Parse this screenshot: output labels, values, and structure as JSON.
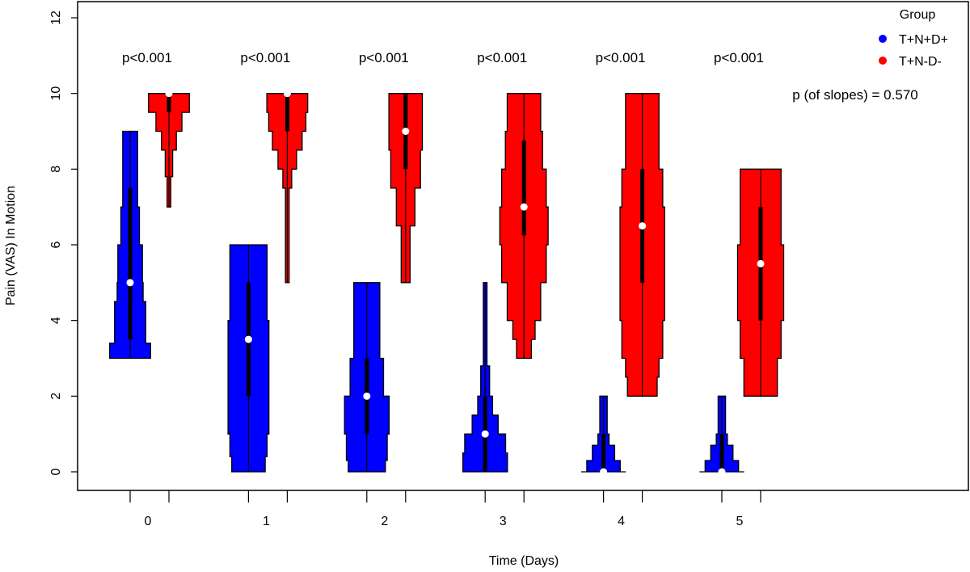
{
  "chart_data": {
    "type": "violin",
    "xlabel": "Time (Days)",
    "ylabel": "Pain (VAS) In Motion",
    "ylim": [
      0,
      12
    ],
    "yticks": [
      0,
      2,
      4,
      6,
      8,
      10,
      12
    ],
    "categories": [
      "0",
      "1",
      "2",
      "3",
      "4",
      "5"
    ],
    "legend": {
      "title": "Group",
      "position": "top-right"
    },
    "slope_annotation": "p (of slopes) = 0.570",
    "p_values": [
      "p<0.001",
      "p<0.001",
      "p<0.001",
      "p<0.001",
      "p<0.001",
      "p<0.001"
    ],
    "series": [
      {
        "name": "T+N+D+",
        "color": "#0000ff",
        "groups": [
          {
            "day": "0",
            "median": 5,
            "min": 3,
            "max": 9,
            "q1": 3.5,
            "q3": 7.5,
            "profile": [
              [
                3,
                0.55
              ],
              [
                3.4,
                0.55
              ],
              [
                3.5,
                0.42
              ],
              [
                4.5,
                0.42
              ],
              [
                5,
                0.35
              ],
              [
                6,
                0.33
              ],
              [
                7,
                0.25
              ],
              [
                8,
                0.2
              ],
              [
                9,
                0.2
              ]
            ]
          },
          {
            "day": "1",
            "median": 3.5,
            "min": 0,
            "max": 6,
            "q1": 2,
            "q3": 5,
            "profile": [
              [
                0,
                0.35
              ],
              [
                0.4,
                0.45
              ],
              [
                1,
                0.5
              ],
              [
                2,
                0.55
              ],
              [
                3,
                0.55
              ],
              [
                4,
                0.55
              ],
              [
                5,
                0.5
              ],
              [
                6,
                0.5
              ]
            ]
          },
          {
            "day": "2",
            "median": 2,
            "min": 0,
            "max": 5,
            "q1": 1,
            "q3": 3,
            "profile": [
              [
                0,
                0.45
              ],
              [
                0.3,
                0.5
              ],
              [
                1,
                0.55
              ],
              [
                2,
                0.6
              ],
              [
                3,
                0.45
              ],
              [
                4,
                0.35
              ],
              [
                5,
                0.35
              ]
            ]
          },
          {
            "day": "3",
            "median": 1,
            "min": 0,
            "max": 5,
            "q1": 0,
            "q3": 2,
            "profile": [
              [
                0,
                0.6
              ],
              [
                0.5,
                0.6
              ],
              [
                1,
                0.55
              ],
              [
                1.5,
                0.35
              ],
              [
                2,
                0.2
              ],
              [
                2.8,
                0.12
              ],
              [
                3.2,
                0.05
              ],
              [
                5,
                0.05
              ]
            ]
          },
          {
            "day": "4",
            "median": 0,
            "min": 0,
            "max": 2,
            "q1": 0,
            "q3": 1,
            "profile": [
              [
                0,
                0.6
              ],
              [
                0.3,
                0.45
              ],
              [
                0.7,
                0.3
              ],
              [
                1,
                0.15
              ],
              [
                1.5,
                0.1
              ],
              [
                2,
                0.1
              ]
            ]
          },
          {
            "day": "5",
            "median": 0,
            "min": 0,
            "max": 2,
            "q1": 0,
            "q3": 1,
            "profile": [
              [
                0,
                0.6
              ],
              [
                0.3,
                0.45
              ],
              [
                0.7,
                0.3
              ],
              [
                1,
                0.15
              ],
              [
                1.5,
                0.1
              ],
              [
                2,
                0.1
              ]
            ]
          }
        ]
      },
      {
        "name": "T+N-D-",
        "color": "#ff0000",
        "groups": [
          {
            "day": "0",
            "median": 10,
            "min": 7,
            "max": 10,
            "q1": 9.5,
            "q3": 10,
            "profile": [
              [
                7,
                0.05
              ],
              [
                7.8,
                0.05
              ],
              [
                8.5,
                0.1
              ],
              [
                9,
                0.2
              ],
              [
                9.5,
                0.35
              ],
              [
                10,
                0.55
              ]
            ]
          },
          {
            "day": "1",
            "median": 10,
            "min": 5,
            "max": 10,
            "q1": 9,
            "q3": 10,
            "profile": [
              [
                5,
                0.05
              ],
              [
                7.5,
                0.05
              ],
              [
                8,
                0.12
              ],
              [
                8.5,
                0.25
              ],
              [
                9,
                0.4
              ],
              [
                9.5,
                0.5
              ],
              [
                10,
                0.55
              ]
            ]
          },
          {
            "day": "2",
            "median": 9,
            "min": 5,
            "max": 10,
            "q1": 8,
            "q3": 10,
            "profile": [
              [
                5,
                0.12
              ],
              [
                5.8,
                0.12
              ],
              [
                6.5,
                0.12
              ],
              [
                7.5,
                0.25
              ],
              [
                8.5,
                0.4
              ],
              [
                9,
                0.45
              ],
              [
                10,
                0.45
              ]
            ]
          },
          {
            "day": "3",
            "median": 7,
            "min": 3,
            "max": 10,
            "q1": 6.25,
            "q3": 8.75,
            "profile": [
              [
                3,
                0.15
              ],
              [
                3.5,
                0.2
              ],
              [
                4,
                0.3
              ],
              [
                5,
                0.45
              ],
              [
                6,
                0.6
              ],
              [
                7,
                0.65
              ],
              [
                8,
                0.6
              ],
              [
                9,
                0.5
              ],
              [
                10,
                0.45
              ]
            ]
          },
          {
            "day": "4",
            "median": 6.5,
            "min": 2,
            "max": 10,
            "q1": 5,
            "q3": 8,
            "profile": [
              [
                2,
                0.35
              ],
              [
                2.5,
                0.4
              ],
              [
                3,
                0.45
              ],
              [
                4,
                0.55
              ],
              [
                5,
                0.6
              ],
              [
                6,
                0.6
              ],
              [
                7,
                0.6
              ],
              [
                8,
                0.55
              ],
              [
                9,
                0.45
              ],
              [
                10,
                0.45
              ]
            ]
          },
          {
            "day": "5",
            "median": 5.5,
            "min": 2,
            "max": 8,
            "q1": 4,
            "q3": 7,
            "profile": [
              [
                2,
                0.35
              ],
              [
                3,
                0.45
              ],
              [
                4,
                0.55
              ],
              [
                5,
                0.62
              ],
              [
                6,
                0.62
              ],
              [
                7,
                0.55
              ],
              [
                8,
                0.55
              ]
            ]
          }
        ]
      }
    ]
  }
}
